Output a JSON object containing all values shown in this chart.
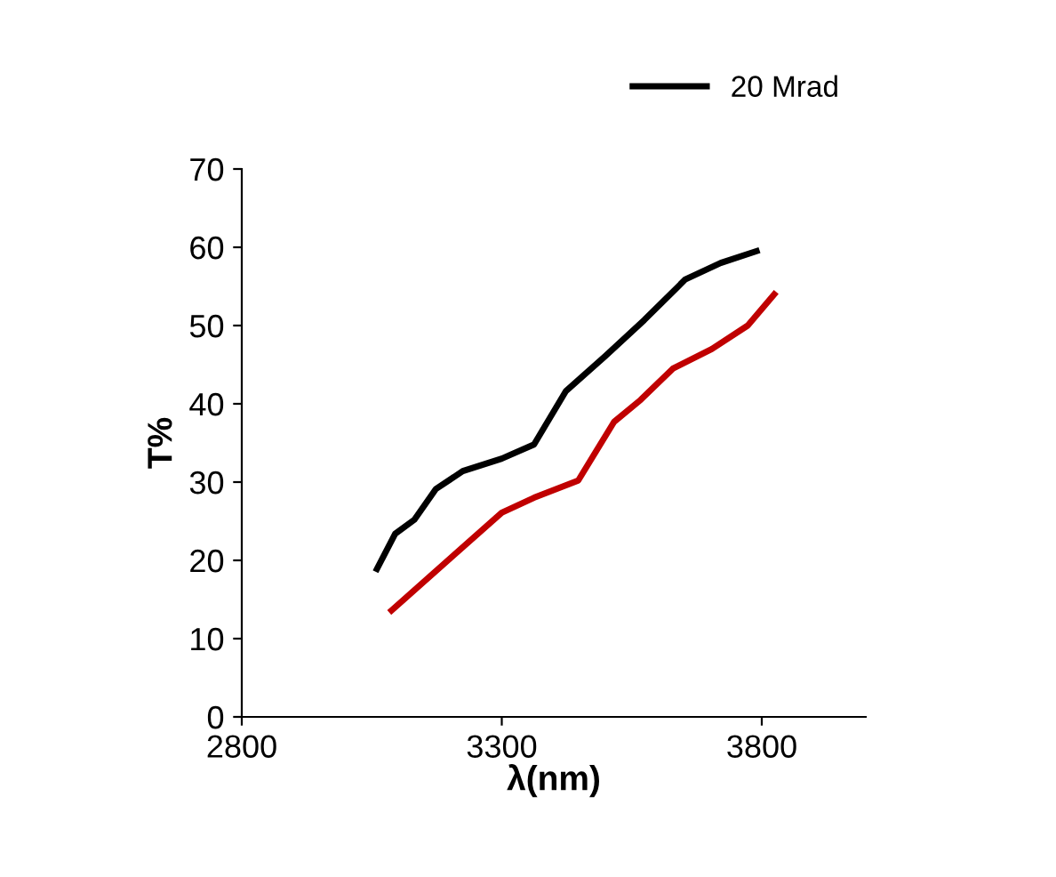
{
  "chart_data": {
    "type": "line",
    "xlabel": "λ(nm)",
    "ylabel": "T%",
    "xlim": [
      2800,
      4000
    ],
    "xticks": [
      2800,
      3300,
      3800
    ],
    "ylim": [
      0,
      70
    ],
    "yticks": [
      0,
      10,
      20,
      30,
      40,
      50,
      60,
      70
    ],
    "grid": false,
    "legend": "top right",
    "marker": "none",
    "line_style": "solid",
    "series": [
      {
        "name": "20 Mrad",
        "color": "#000000",
        "x": [
          3060,
          3095,
          3132,
          3173,
          3225,
          3300,
          3362,
          3423,
          3499,
          3574,
          3653,
          3721,
          3790
        ],
        "values": [
          18.9,
          23.4,
          25.2,
          29.1,
          31.4,
          33,
          34.8,
          41.6,
          46.1,
          50.7,
          55.9,
          58,
          59.5
        ]
      },
      {
        "color": "#c00000",
        "x": [
          3088,
          3300,
          3362,
          3447,
          3516,
          3567,
          3629,
          3704,
          3773,
          3824
        ],
        "values": [
          13.6,
          26.1,
          28,
          30.2,
          37.7,
          40.5,
          44.5,
          47,
          50,
          54
        ]
      }
    ]
  }
}
